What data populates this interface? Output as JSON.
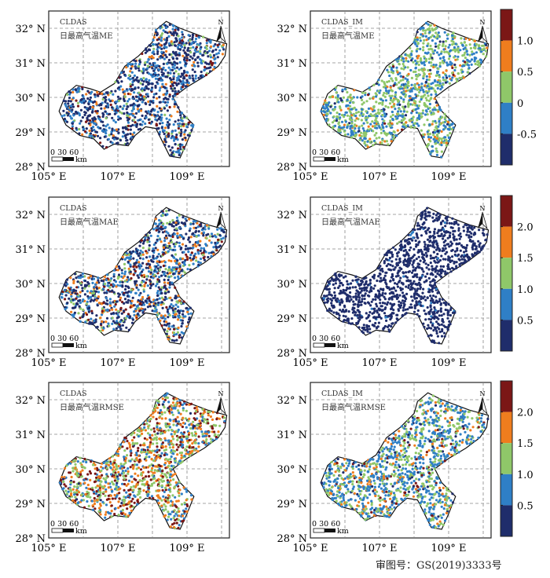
{
  "axes": {
    "lat_ticks": [
      "32° N",
      "31° N",
      "30° N",
      "29° N",
      "28° N"
    ],
    "lon_ticks": [
      "105° E",
      "107° E",
      "109° E"
    ]
  },
  "scale_bar": {
    "numbers": "0 30 60",
    "unit": "km"
  },
  "north_label": "N",
  "colors": [
    "#1f2d6b",
    "#2f7fc6",
    "#8fc769",
    "#ef7d1e",
    "#7b1716"
  ],
  "panels": [
    {
      "source": "CLDAS",
      "title": "日最高气温ME",
      "mix": [
        0.5,
        0.3,
        0.07,
        0.08,
        0.05
      ]
    },
    {
      "source": "CLDAS_IM",
      "title": "日最高气温ME",
      "mix": [
        0.04,
        0.38,
        0.5,
        0.07,
        0.01
      ],
      "colorbar": {
        "ticks": [
          "1.0",
          "0.5",
          "0",
          "-0.5"
        ]
      }
    },
    {
      "source": "CLDAS",
      "title": "日最高气温MAE",
      "mix": [
        0.38,
        0.3,
        0.12,
        0.12,
        0.08
      ]
    },
    {
      "source": "CLDAS_IM",
      "title": "日最高气温MAE",
      "mix": [
        0.97,
        0.03,
        0,
        0,
        0
      ],
      "colorbar": {
        "ticks": [
          "2.0",
          "1.5",
          "1.0",
          "0.5"
        ]
      }
    },
    {
      "source": "CLDAS",
      "title": "日最高气温RMSE",
      "mix": [
        0.03,
        0.22,
        0.3,
        0.25,
        0.2
      ]
    },
    {
      "source": "CLDAS_IM",
      "title": "日最高气温RMSE",
      "mix": [
        0.05,
        0.5,
        0.3,
        0.1,
        0.05
      ],
      "colorbar": {
        "ticks": [
          "2.0",
          "1.5",
          "1.0",
          "0.5"
        ]
      }
    }
  ],
  "footer": "审图号：GS(2019)3333号"
}
